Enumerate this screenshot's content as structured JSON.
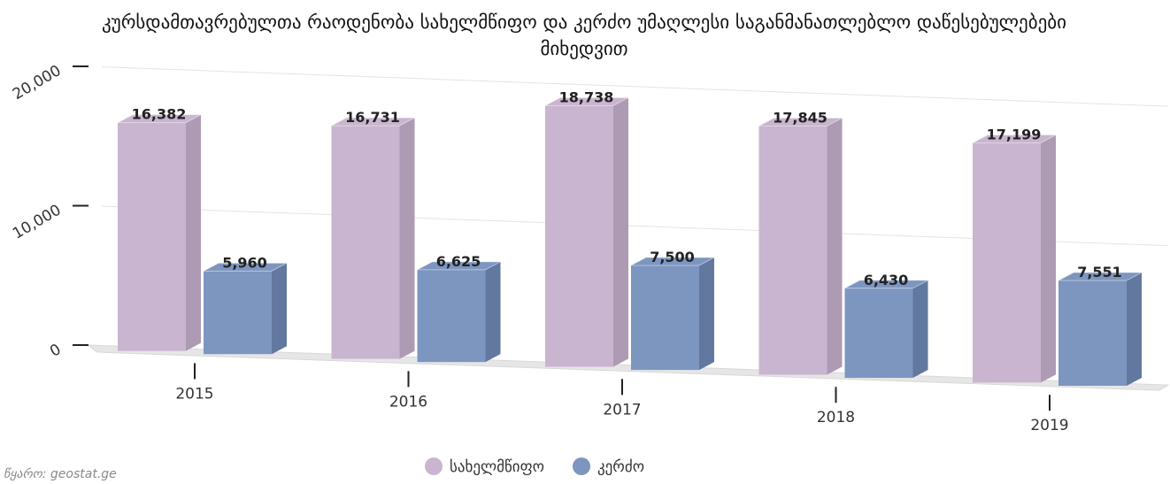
{
  "chart_data": {
    "type": "bar3d",
    "title": "კურსდამთავრებულთა რაოდენობა სახელმწიფო და კერძო უმაღლესი საგანმანათლებლო დაწესებულებები მიხედვით",
    "categories": [
      "2015",
      "2016",
      "2017",
      "2018",
      "2019"
    ],
    "series": [
      {
        "name": "სახელმწიფო",
        "color": "#c9b5cf",
        "side": "#ad9bb3",
        "values": [
          16382,
          16731,
          18738,
          17845,
          17199
        ],
        "value_labels": [
          "16,382",
          "16,731",
          "18,738",
          "17,845",
          "17,199"
        ]
      },
      {
        "name": "კერძო",
        "color": "#7d96c0",
        "side": "#62789f",
        "values": [
          5960,
          6625,
          7500,
          6430,
          7551
        ],
        "value_labels": [
          "5,960",
          "6,625",
          "7,500",
          "6,430",
          "7,551"
        ]
      }
    ],
    "ylim": [
      0,
      20000
    ],
    "yticks": [
      0,
      {
        "value": 10000,
        "label": "10,000"
      },
      {
        "value": 20000,
        "label": "20,000"
      }
    ],
    "grid": true,
    "legend": "bottom",
    "source": "წყარო: geostat.ge"
  }
}
